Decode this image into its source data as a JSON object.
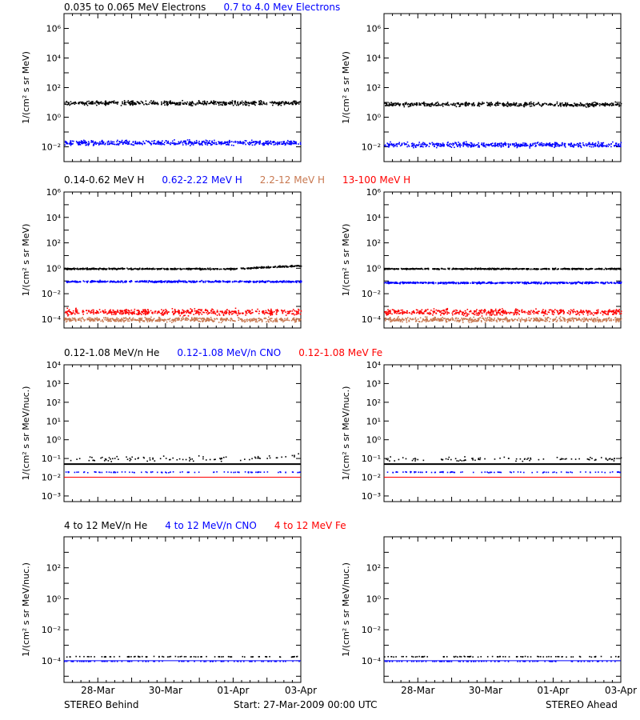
{
  "colors": {
    "black": "#000000",
    "blue": "#0000ff",
    "brown": "#c87850",
    "red": "#ff0000",
    "frame": "#000000",
    "background": "#ffffff"
  },
  "footer": {
    "left": "STEREO Behind",
    "center": "Start: 27-Mar-2009 00:00 UTC",
    "right": "STEREO Ahead"
  },
  "chart_data": [
    {
      "type": "scatter",
      "row": 1,
      "spacecraft": "STEREO Behind",
      "ylabel": "1/(cm² s sr MeV)",
      "yscale": "log",
      "ylim": [
        0.001,
        10000000
      ],
      "yticks": [
        {
          "v": 0.01,
          "label": "10⁻²"
        },
        {
          "v": 1,
          "label": "10⁰"
        },
        {
          "v": 100,
          "label": "10²"
        },
        {
          "v": 10000,
          "label": "10⁴"
        },
        {
          "v": 1000000,
          "label": "10⁶"
        }
      ],
      "x_range_days": [
        0,
        7
      ],
      "legend": [
        {
          "name": "0.035 to 0.065 MeV Electrons",
          "color": "black"
        },
        {
          "name": "0.7 to 4.0 Mev Electrons",
          "color": "blue"
        }
      ],
      "series": [
        {
          "color": "black",
          "level": 10,
          "spread": 0.12,
          "trend": "flat"
        },
        {
          "color": "blue",
          "level": 0.02,
          "spread": 0.14,
          "trend": "flat"
        }
      ]
    },
    {
      "type": "scatter",
      "row": 1,
      "spacecraft": "STEREO Ahead",
      "ylabel": "1/(cm² s sr MeV)",
      "yscale": "log",
      "ylim": [
        0.001,
        10000000
      ],
      "yticks": [
        {
          "v": 0.01,
          "label": "10⁻²"
        },
        {
          "v": 1,
          "label": "10⁰"
        },
        {
          "v": 100,
          "label": "10²"
        },
        {
          "v": 10000,
          "label": "10⁴"
        },
        {
          "v": 1000000,
          "label": "10⁶"
        }
      ],
      "x_range_days": [
        0,
        7
      ],
      "legend": [],
      "series": [
        {
          "color": "black",
          "level": 8,
          "spread": 0.12,
          "trend": "flat"
        },
        {
          "color": "blue",
          "level": 0.015,
          "spread": 0.14,
          "trend": "flat"
        }
      ]
    },
    {
      "type": "scatter",
      "row": 2,
      "spacecraft": "STEREO Behind",
      "ylabel": "1/(cm² s sr MeV)",
      "yscale": "log",
      "ylim": [
        2e-05,
        1000000
      ],
      "yticks": [
        {
          "v": 0.0001,
          "label": "10⁻⁴"
        },
        {
          "v": 0.01,
          "label": "10⁻²"
        },
        {
          "v": 1,
          "label": "10⁰"
        },
        {
          "v": 100,
          "label": "10²"
        },
        {
          "v": 10000,
          "label": "10⁴"
        },
        {
          "v": 1000000,
          "label": "10⁶"
        }
      ],
      "x_range_days": [
        0,
        7
      ],
      "legend": [
        {
          "name": "0.14-0.62 MeV H",
          "color": "black"
        },
        {
          "name": "0.62-2.22 MeV H",
          "color": "blue"
        },
        {
          "name": "2.2-12 MeV H",
          "color": "brown"
        },
        {
          "name": "13-100 MeV H",
          "color": "red"
        }
      ],
      "series": [
        {
          "color": "brown",
          "level": 0.0001,
          "spread": 0.15,
          "trend": "flat"
        },
        {
          "color": "red",
          "level": 0.0004,
          "spread": 0.2,
          "trend": "flat"
        },
        {
          "color": "black",
          "level": 1,
          "spread": 0.05,
          "trend": "rise-late"
        },
        {
          "color": "blue",
          "level": 0.1,
          "spread": 0.06,
          "trend": "flat"
        }
      ]
    },
    {
      "type": "scatter",
      "row": 2,
      "spacecraft": "STEREO Ahead",
      "ylabel": "1/(cm² s sr MeV)",
      "yscale": "log",
      "ylim": [
        2e-05,
        1000000
      ],
      "yticks": [
        {
          "v": 0.0001,
          "label": "10⁻⁴"
        },
        {
          "v": 0.01,
          "label": "10⁻²"
        },
        {
          "v": 1,
          "label": "10⁰"
        },
        {
          "v": 100,
          "label": "10²"
        },
        {
          "v": 10000,
          "label": "10⁴"
        },
        {
          "v": 1000000,
          "label": "10⁶"
        }
      ],
      "x_range_days": [
        0,
        7
      ],
      "legend": [],
      "series": [
        {
          "color": "brown",
          "level": 0.0001,
          "spread": 0.15,
          "trend": "flat"
        },
        {
          "color": "red",
          "level": 0.0004,
          "spread": 0.2,
          "trend": "flat"
        },
        {
          "color": "black",
          "level": 1,
          "spread": 0.04,
          "trend": "flat"
        },
        {
          "color": "blue",
          "level": 0.08,
          "spread": 0.06,
          "trend": "flat"
        }
      ]
    },
    {
      "type": "scatter",
      "row": 3,
      "spacecraft": "STEREO Behind",
      "ylabel": "1/(cm² s sr MeV/nuc.)",
      "yscale": "log",
      "ylim": [
        0.0005,
        10000
      ],
      "yticks": [
        {
          "v": 0.001,
          "label": "10⁻³"
        },
        {
          "v": 0.01,
          "label": "10⁻²"
        },
        {
          "v": 0.1,
          "label": "10⁻¹"
        },
        {
          "v": 1,
          "label": "10⁰"
        },
        {
          "v": 10,
          "label": "10¹"
        },
        {
          "v": 100,
          "label": "10²"
        },
        {
          "v": 1000,
          "label": "10³"
        },
        {
          "v": 10000,
          "label": "10⁴"
        }
      ],
      "x_range_days": [
        0,
        7
      ],
      "legend": [
        {
          "name": "0.12-1.08 MeV/n He",
          "color": "black"
        },
        {
          "name": "0.12-1.08 MeV/n CNO",
          "color": "blue"
        },
        {
          "name": "0.12-1.08 MeV Fe",
          "color": "red"
        }
      ],
      "lines": [
        {
          "color": "black",
          "level": 0.05,
          "width": 2
        },
        {
          "color": "blue",
          "level": 0.01,
          "width": 1
        },
        {
          "color": "red",
          "level": 0.01,
          "width": 1
        }
      ],
      "series": [
        {
          "color": "black",
          "level": 0.1,
          "spread": 0.12,
          "trend": "rise-late",
          "sparse": true
        },
        {
          "color": "blue",
          "level": 0.02,
          "spread": 0.02,
          "trend": "flat",
          "sparse": true
        }
      ]
    },
    {
      "type": "scatter",
      "row": 3,
      "spacecraft": "STEREO Ahead",
      "ylabel": "1/(cm² s sr MeV/nuc.)",
      "yscale": "log",
      "ylim": [
        0.0005,
        10000
      ],
      "yticks": [
        {
          "v": 0.001,
          "label": "10⁻³"
        },
        {
          "v": 0.01,
          "label": "10⁻²"
        },
        {
          "v": 0.1,
          "label": "10⁻¹"
        },
        {
          "v": 1,
          "label": "10⁰"
        },
        {
          "v": 10,
          "label": "10¹"
        },
        {
          "v": 100,
          "label": "10²"
        },
        {
          "v": 1000,
          "label": "10³"
        },
        {
          "v": 10000,
          "label": "10⁴"
        }
      ],
      "x_range_days": [
        0,
        7
      ],
      "legend": [],
      "lines": [
        {
          "color": "black",
          "level": 0.05,
          "width": 2
        },
        {
          "color": "blue",
          "level": 0.01,
          "width": 1
        },
        {
          "color": "red",
          "level": 0.01,
          "width": 1
        }
      ],
      "series": [
        {
          "color": "black",
          "level": 0.1,
          "spread": 0.1,
          "trend": "flat",
          "sparse": true
        },
        {
          "color": "blue",
          "level": 0.02,
          "spread": 0.02,
          "trend": "flat",
          "sparse": true
        }
      ]
    },
    {
      "type": "scatter",
      "row": 4,
      "spacecraft": "STEREO Behind",
      "ylabel": "1/(cm² s sr MeV/nuc.)",
      "yscale": "log",
      "ylim": [
        4e-06,
        10000
      ],
      "yticks": [
        {
          "v": 0.0001,
          "label": "10⁻⁴"
        },
        {
          "v": 0.01,
          "label": "10⁻²"
        },
        {
          "v": 1,
          "label": "10⁰"
        },
        {
          "v": 100,
          "label": "10²"
        }
      ],
      "x_range_days": [
        0,
        7
      ],
      "legend": [
        {
          "name": "4 to 12 MeV/n He",
          "color": "black"
        },
        {
          "name": "4 to 12 MeV/n CNO",
          "color": "blue"
        },
        {
          "name": "4 to 12 MeV Fe",
          "color": "red"
        }
      ],
      "lines": [
        {
          "color": "blue",
          "level": 0.0001,
          "width": 1
        }
      ],
      "series": [
        {
          "color": "black",
          "level": 0.0002,
          "spread": 0.02,
          "trend": "flat",
          "sparse": true
        },
        {
          "color": "blue",
          "level": 0.0001,
          "spread": 0.01,
          "trend": "flat",
          "sparse": true
        }
      ]
    },
    {
      "type": "scatter",
      "row": 4,
      "spacecraft": "STEREO Ahead",
      "ylabel": "1/(cm² s sr MeV/nuc.)",
      "yscale": "log",
      "ylim": [
        4e-06,
        10000
      ],
      "yticks": [
        {
          "v": 0.0001,
          "label": "10⁻⁴"
        },
        {
          "v": 0.01,
          "label": "10⁻²"
        },
        {
          "v": 1,
          "label": "10⁰"
        },
        {
          "v": 100,
          "label": "10²"
        }
      ],
      "x_range_days": [
        0,
        7
      ],
      "xticks": [
        {
          "day": 1,
          "label": "28-Mar"
        },
        {
          "day": 3,
          "label": "30-Mar"
        },
        {
          "day": 5,
          "label": "01-Apr"
        },
        {
          "day": 7,
          "label": "03-Apr"
        }
      ],
      "legend": [],
      "lines": [
        {
          "color": "blue",
          "level": 0.0001,
          "width": 1
        }
      ],
      "series": [
        {
          "color": "black",
          "level": 0.0002,
          "spread": 0.02,
          "trend": "flat",
          "sparse": true
        },
        {
          "color": "blue",
          "level": 0.0001,
          "spread": 0.01,
          "trend": "flat",
          "sparse": true
        }
      ]
    }
  ],
  "xticks": [
    {
      "day": 1,
      "label": "28-Mar"
    },
    {
      "day": 3,
      "label": "30-Mar"
    },
    {
      "day": 5,
      "label": "01-Apr"
    },
    {
      "day": 7,
      "label": "03-Apr"
    }
  ]
}
